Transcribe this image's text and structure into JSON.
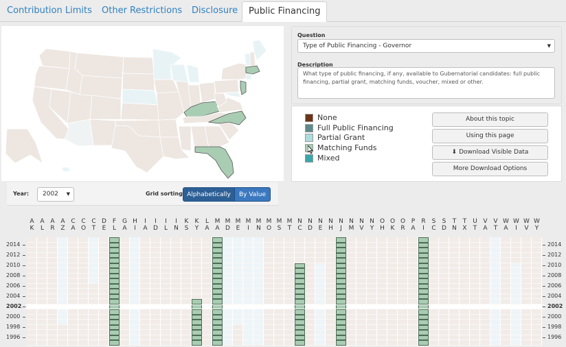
{
  "tabs": [
    {
      "label": "Contribution Limits",
      "active": false
    },
    {
      "label": "Other Restrictions",
      "active": false
    },
    {
      "label": "Disclosure",
      "active": false
    },
    {
      "label": "Public Financing",
      "active": true
    }
  ],
  "question": {
    "label": "Question",
    "value": "Type of Public Financing - Governor"
  },
  "description": {
    "label": "Description",
    "text": "What type of public financing, if any, available to Gubernatorial candidates:  full public financing, partial grant, matching funds, voucher, mixed or other."
  },
  "legend": [
    {
      "label": "None",
      "color": "#6b3417"
    },
    {
      "label": "Full Public Financing",
      "color": "#5e8a8c"
    },
    {
      "label": "Partial Grant",
      "color": "#aedcdc"
    },
    {
      "label": "Matching Funds",
      "color": "#a9cdb3"
    },
    {
      "label": "Mixed",
      "color": "#3aa7ab"
    }
  ],
  "buttons": {
    "about": "About this topic",
    "using": "Using this page",
    "download_visible": "Download Visible Data",
    "more_download": "More Download Options"
  },
  "controls": {
    "year_label": "Year:",
    "year_value": "2002",
    "sorting_label": "Grid sorting:",
    "sort_alpha": "Alphabetically",
    "sort_value": "By Value"
  },
  "grid": {
    "states": [
      {
        "top": "A",
        "bottom": "K"
      },
      {
        "top": "A",
        "bottom": "L"
      },
      {
        "top": "A",
        "bottom": "R"
      },
      {
        "top": "A",
        "bottom": "Z"
      },
      {
        "top": "C",
        "bottom": "A"
      },
      {
        "top": "C",
        "bottom": "O"
      },
      {
        "top": "C",
        "bottom": "T"
      },
      {
        "top": "D",
        "bottom": "E"
      },
      {
        "top": "F",
        "bottom": "L"
      },
      {
        "top": "G",
        "bottom": "A"
      },
      {
        "top": "H",
        "bottom": "I"
      },
      {
        "top": "I",
        "bottom": "A"
      },
      {
        "top": "I",
        "bottom": "D"
      },
      {
        "top": "I",
        "bottom": "L"
      },
      {
        "top": "I",
        "bottom": "N"
      },
      {
        "top": "K",
        "bottom": "S"
      },
      {
        "top": "K",
        "bottom": "Y"
      },
      {
        "top": "L",
        "bottom": "A"
      },
      {
        "top": "M",
        "bottom": "A"
      },
      {
        "top": "M",
        "bottom": "D"
      },
      {
        "top": "M",
        "bottom": "E"
      },
      {
        "top": "M",
        "bottom": "I"
      },
      {
        "top": "M",
        "bottom": "N"
      },
      {
        "top": "M",
        "bottom": "O"
      },
      {
        "top": "M",
        "bottom": "S"
      },
      {
        "top": "M",
        "bottom": "T"
      },
      {
        "top": "N",
        "bottom": "C"
      },
      {
        "top": "N",
        "bottom": "D"
      },
      {
        "top": "N",
        "bottom": "E"
      },
      {
        "top": "N",
        "bottom": "H"
      },
      {
        "top": "N",
        "bottom": "J"
      },
      {
        "top": "N",
        "bottom": "M"
      },
      {
        "top": "N",
        "bottom": "V"
      },
      {
        "top": "N",
        "bottom": "Y"
      },
      {
        "top": "O",
        "bottom": "H"
      },
      {
        "top": "O",
        "bottom": "K"
      },
      {
        "top": "O",
        "bottom": "R"
      },
      {
        "top": "P",
        "bottom": "A"
      },
      {
        "top": "R",
        "bottom": "I"
      },
      {
        "top": "S",
        "bottom": "C"
      },
      {
        "top": "S",
        "bottom": "D"
      },
      {
        "top": "T",
        "bottom": "N"
      },
      {
        "top": "T",
        "bottom": "X"
      },
      {
        "top": "U",
        "bottom": "T"
      },
      {
        "top": "V",
        "bottom": "A"
      },
      {
        "top": "V",
        "bottom": "T"
      },
      {
        "top": "W",
        "bottom": "A"
      },
      {
        "top": "W",
        "bottom": "I"
      },
      {
        "top": "W",
        "bottom": "V"
      },
      {
        "top": "W",
        "bottom": "Y"
      }
    ],
    "years_left": [
      "2014",
      "2012",
      "2010",
      "2008",
      "2006",
      "2004",
      "2002",
      "2000",
      "1998",
      "1996"
    ],
    "years_right": [
      "2014",
      "2012",
      "2010",
      "2008",
      "2006",
      "2004",
      "2002",
      "2000",
      "1998",
      "1996"
    ],
    "selected_year": "2002",
    "year_rows": [
      2015,
      2014,
      2013,
      2012,
      2011,
      2010,
      2009,
      2008,
      2007,
      2006,
      2005,
      2004,
      2003,
      2002,
      2001,
      2000,
      1999,
      1998,
      1997,
      1996,
      1995
    ],
    "matching_funds": {
      "FL": [
        1995,
        2015
      ],
      "MA": [
        1995,
        2015
      ],
      "NJ": [
        1995,
        2015
      ],
      "RI": [
        1995,
        2015
      ],
      "KY": [
        1995,
        2003
      ],
      "NC": [
        1995,
        2010
      ]
    },
    "partial_grant": {
      "AZ": [
        1999,
        2015
      ],
      "CT": [
        2007,
        2015
      ],
      "HI": [
        1995,
        2015
      ],
      "MD": [
        1995,
        2015
      ],
      "ME": [
        1999,
        2015
      ],
      "MI": [
        1995,
        2015
      ],
      "MN": [
        1995,
        2015
      ],
      "NE": [
        1995,
        2010
      ],
      "VT": [
        1995,
        2015
      ],
      "WI": [
        1995,
        2010
      ]
    }
  }
}
